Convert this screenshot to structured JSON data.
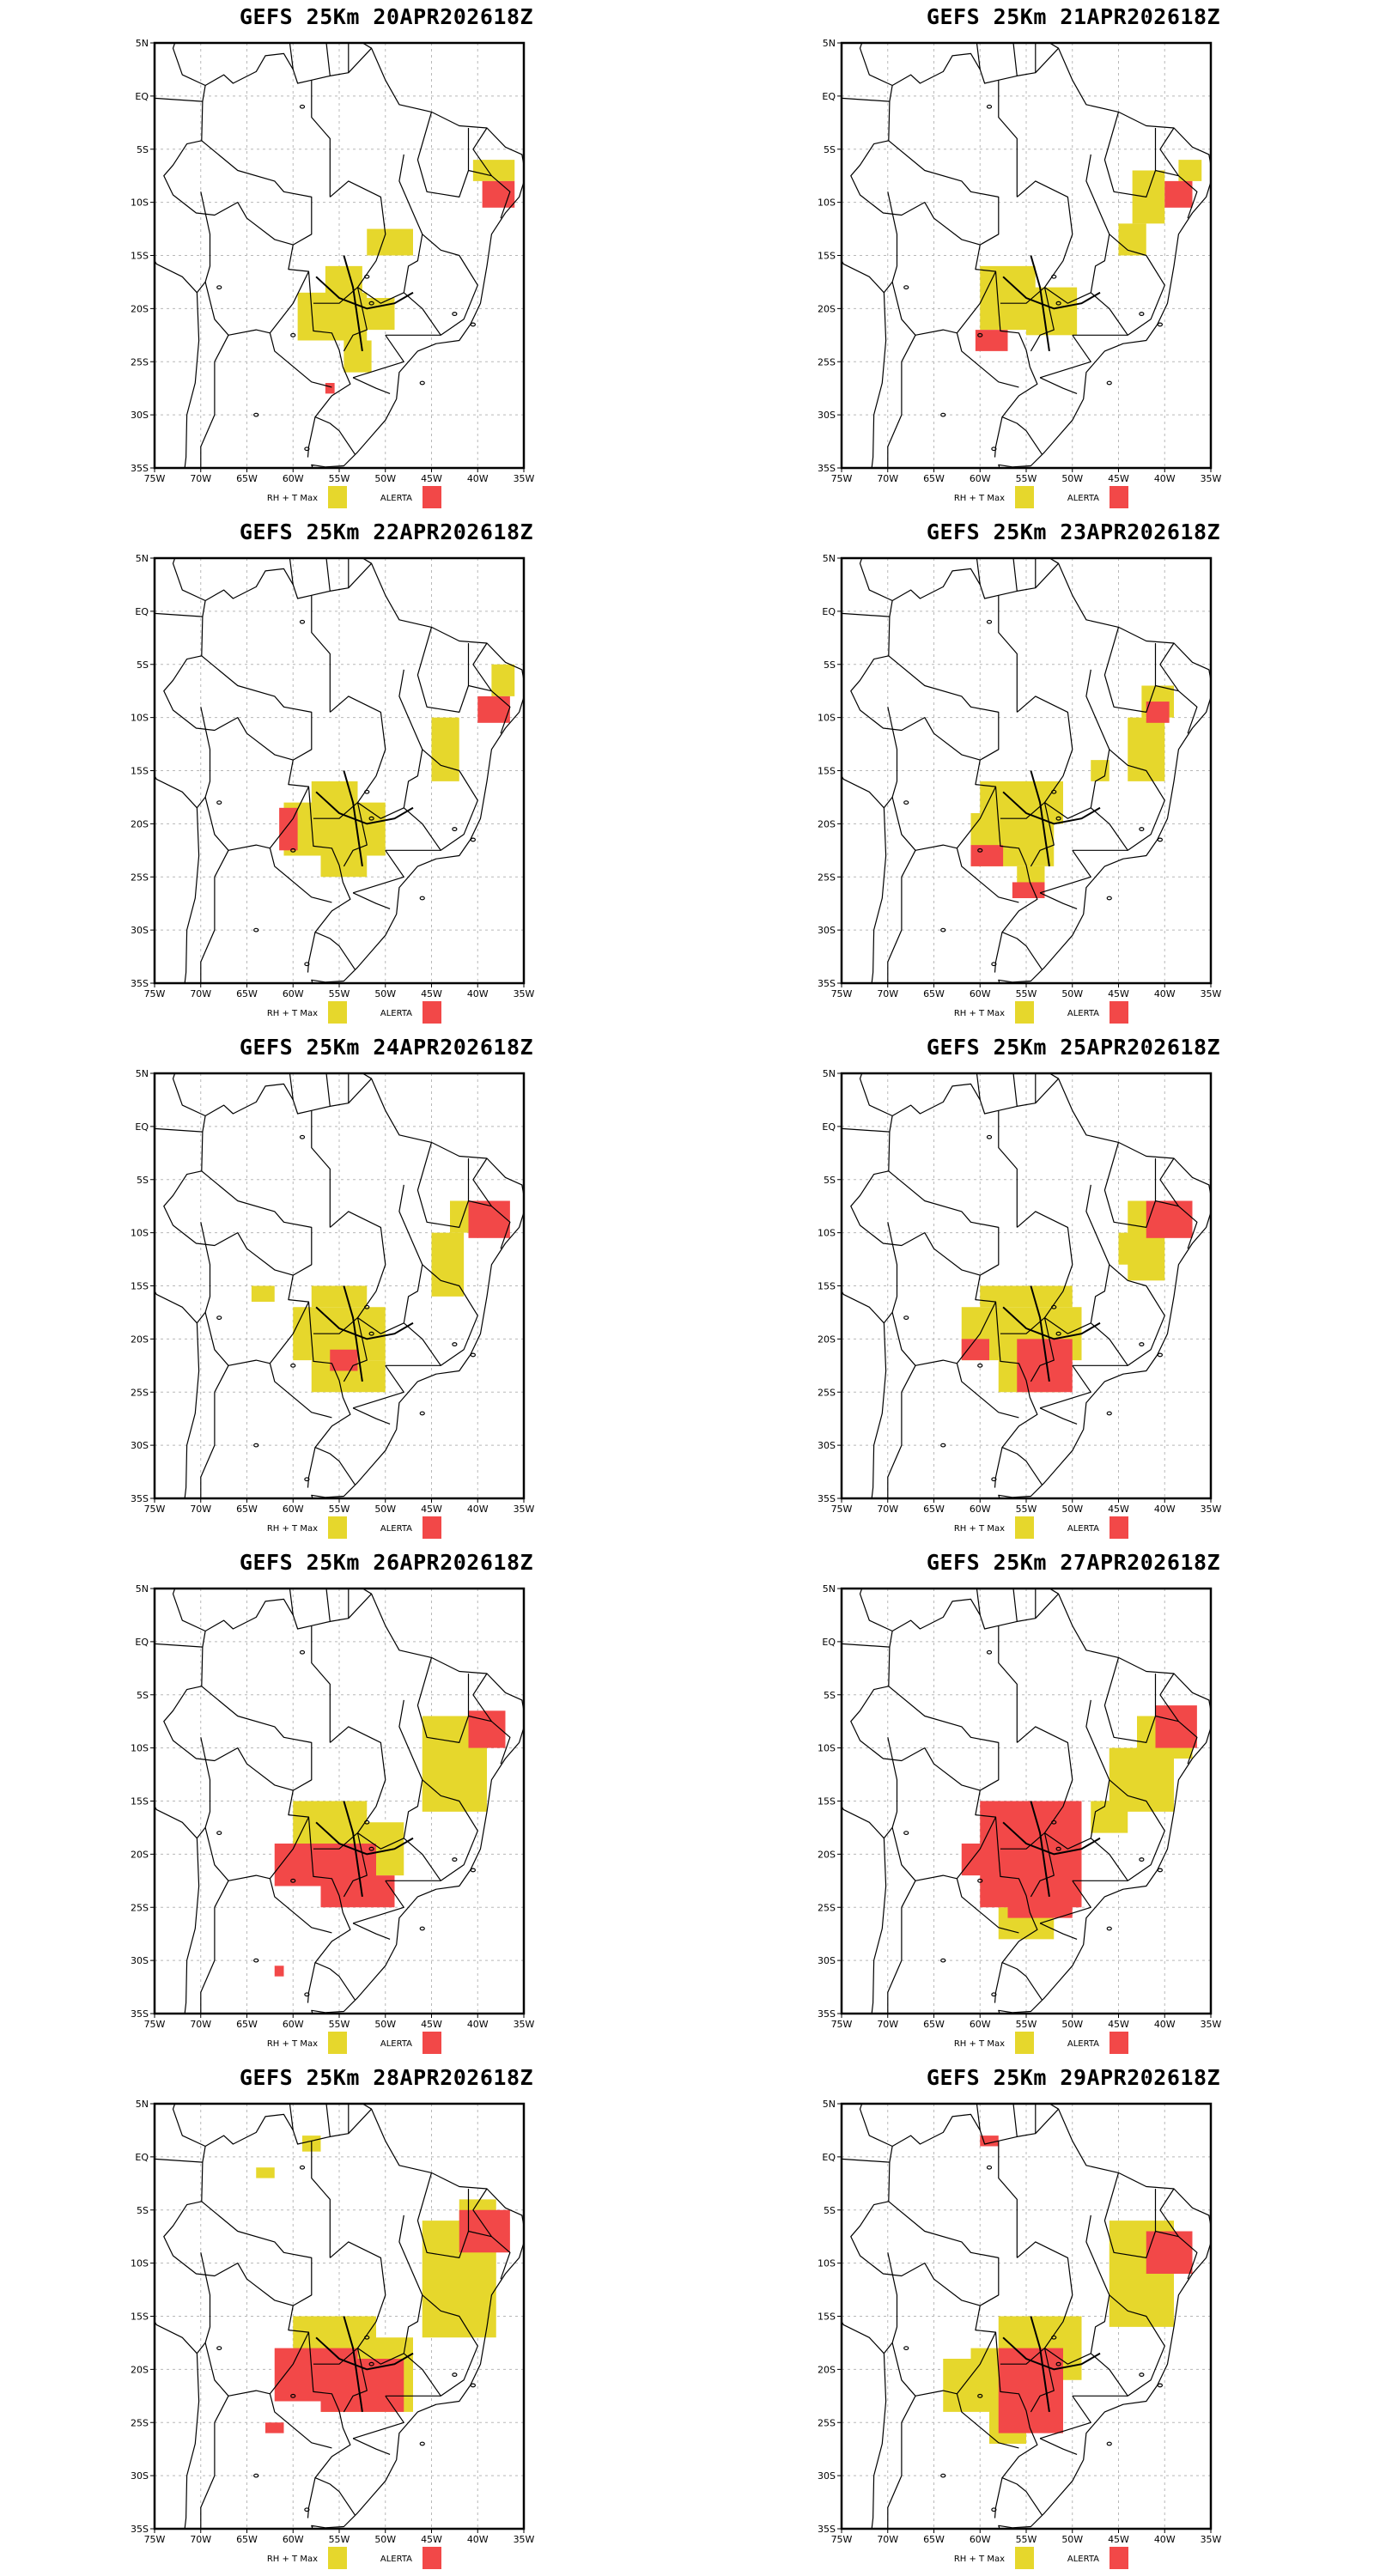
{
  "figure": {
    "legend": {
      "rh_label": "RH + T Max",
      "alert_label": "ALERTA"
    },
    "colors": {
      "rh": "#e6d72c",
      "alert": "#f24848",
      "border": "#000000",
      "grid": "#b8b8b8"
    },
    "lat_labels": [
      "5N",
      "EQ",
      "5S",
      "10S",
      "15S",
      "20S",
      "25S",
      "30S",
      "35S"
    ],
    "lon_labels": [
      "75W",
      "70W",
      "65W",
      "60W",
      "55W",
      "50W",
      "45W",
      "40W",
      "35W"
    ],
    "panels": [
      {
        "title": "GEFS 25Km 20APR202618Z",
        "yellow": [
          [
            -56.5,
            -16,
            -52.5,
            -20
          ],
          [
            -59.5,
            -18.5,
            -52,
            -23
          ],
          [
            -54,
            -19,
            -49,
            -22
          ],
          [
            -52,
            -12.5,
            -47,
            -15
          ],
          [
            -40.5,
            -6,
            -36,
            -8
          ],
          [
            -54.5,
            -23,
            -51.5,
            -26
          ]
        ],
        "red": [
          [
            -39.5,
            -8,
            -36,
            -10.5
          ],
          [
            -56.5,
            -27,
            -55.5,
            -28
          ]
        ]
      },
      {
        "title": "GEFS 25Km 21APR202618Z",
        "yellow": [
          [
            -60,
            -16,
            -54,
            -22
          ],
          [
            -55,
            -18,
            -49.5,
            -22.5
          ],
          [
            -43.5,
            -7,
            -40,
            -12
          ],
          [
            -45,
            -12,
            -42,
            -15
          ],
          [
            -38.5,
            -6,
            -36,
            -8
          ]
        ],
        "red": [
          [
            -40,
            -8,
            -37,
            -10.5
          ],
          [
            -60.5,
            -22,
            -57,
            -24
          ]
        ]
      },
      {
        "title": "GEFS 25Km 22APR202618Z",
        "yellow": [
          [
            -58,
            -16,
            -53,
            -21
          ],
          [
            -61,
            -18,
            -50,
            -23
          ],
          [
            -57,
            -22,
            -52,
            -25
          ],
          [
            -45,
            -10,
            -42,
            -16
          ],
          [
            -38.5,
            -5,
            -36,
            -8
          ]
        ],
        "red": [
          [
            -61.5,
            -18.5,
            -59.5,
            -22.5
          ],
          [
            -40,
            -8,
            -36.5,
            -10.5
          ]
        ]
      },
      {
        "title": "GEFS 25Km 23APR202618Z",
        "yellow": [
          [
            -60,
            -16,
            -51,
            -20
          ],
          [
            -61,
            -19,
            -52,
            -24
          ],
          [
            -56,
            -24,
            -53,
            -26.5
          ],
          [
            -44,
            -10,
            -40,
            -16
          ],
          [
            -42.5,
            -7,
            -39,
            -10
          ],
          [
            -48,
            -14,
            -46,
            -16
          ]
        ],
        "red": [
          [
            -42,
            -8.5,
            -39.5,
            -10.5
          ],
          [
            -61,
            -22,
            -57.5,
            -24
          ],
          [
            -56.5,
            -25.5,
            -53,
            -27
          ]
        ]
      },
      {
        "title": "GEFS 25Km 24APR202618Z",
        "yellow": [
          [
            -60,
            -17,
            -50,
            -22
          ],
          [
            -58,
            -15,
            -52,
            -17
          ],
          [
            -58,
            -22,
            -50,
            -25
          ],
          [
            -45,
            -10,
            -41.5,
            -16
          ],
          [
            -43,
            -7,
            -39,
            -10
          ],
          [
            -64.5,
            -15,
            -62,
            -16.5
          ]
        ],
        "red": [
          [
            -41,
            -7,
            -36.5,
            -10.5
          ],
          [
            -56,
            -21,
            -53,
            -23
          ]
        ]
      },
      {
        "title": "GEFS 25Km 25APR202618Z",
        "yellow": [
          [
            -62,
            -17,
            -49,
            -22
          ],
          [
            -60,
            -15,
            -50,
            -17
          ],
          [
            -58,
            -22,
            -51,
            -25
          ],
          [
            -44,
            -7,
            -40,
            -14.5
          ],
          [
            -45,
            -10,
            -42,
            -13
          ]
        ],
        "red": [
          [
            -42,
            -7,
            -37,
            -10.5
          ],
          [
            -56,
            -20,
            -50,
            -25
          ],
          [
            -62,
            -20,
            -59,
            -22
          ]
        ]
      },
      {
        "title": "GEFS 25Km 26APR202618Z",
        "yellow": [
          [
            -60,
            -15,
            -52,
            -19
          ],
          [
            -58,
            -17,
            -48,
            -22
          ],
          [
            -46,
            -7,
            -39,
            -16
          ],
          [
            -44,
            -10,
            -40,
            -14
          ]
        ],
        "red": [
          [
            -62,
            -19,
            -51,
            -23
          ],
          [
            -57,
            -22,
            -49,
            -25
          ],
          [
            -41,
            -6.5,
            -37,
            -10
          ],
          [
            -62,
            -30.5,
            -61,
            -31.5
          ]
        ]
      },
      {
        "title": "GEFS 25Km 27APR202618Z",
        "yellow": [
          [
            -46,
            -10,
            -39,
            -16
          ],
          [
            -43,
            -7,
            -37,
            -11
          ],
          [
            -58,
            -25,
            -52,
            -28
          ],
          [
            -48,
            -15,
            -44,
            -18
          ]
        ],
        "red": [
          [
            -60,
            -15,
            -49,
            -25
          ],
          [
            -57,
            -24,
            -50,
            -26
          ],
          [
            -41,
            -6,
            -36.5,
            -10
          ],
          [
            -62,
            -19,
            -59,
            -22
          ]
        ]
      },
      {
        "title": "GEFS 25Km 28APR202618Z",
        "yellow": [
          [
            -60,
            -15,
            -51,
            -18.5
          ],
          [
            -57,
            -17,
            -47,
            -24
          ],
          [
            -46,
            -6,
            -38,
            -17
          ],
          [
            -42,
            -4,
            -38,
            -8
          ],
          [
            -64,
            -1,
            -62,
            -2
          ],
          [
            -59,
            2,
            -57,
            0.5
          ]
        ],
        "red": [
          [
            -62,
            -18,
            -53,
            -23
          ],
          [
            -57,
            -19,
            -48,
            -24
          ],
          [
            -42,
            -5,
            -36.5,
            -9
          ],
          [
            -63,
            -25,
            -61,
            -26
          ]
        ]
      },
      {
        "title": "GEFS 25Km 29APR202618Z",
        "yellow": [
          [
            -58,
            -15,
            -49,
            -21
          ],
          [
            -61,
            -18,
            -56,
            -24
          ],
          [
            -46,
            -6,
            -39,
            -16
          ],
          [
            -64,
            -19,
            -61,
            -24
          ],
          [
            -59,
            -23,
            -55,
            -27
          ]
        ],
        "red": [
          [
            -58,
            -18,
            -51,
            -26
          ],
          [
            -42,
            -7,
            -37,
            -11
          ],
          [
            -60,
            2,
            -58,
            1
          ]
        ]
      }
    ]
  }
}
